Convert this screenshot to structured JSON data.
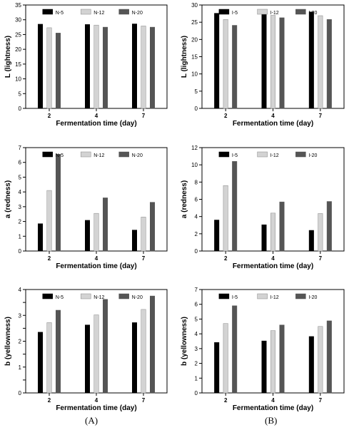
{
  "figure": {
    "panel_labels": [
      "(A)",
      "(B)"
    ]
  },
  "chart_data": [
    {
      "type": "bar",
      "categories": [
        "2",
        "4",
        "7"
      ],
      "xlabel": "Fermentation time (day)",
      "ylabel": "L (lightness)",
      "ylim": [
        0,
        35
      ],
      "yticks": [
        0,
        5,
        10,
        15,
        20,
        25,
        30,
        35
      ],
      "grid": false,
      "legend_position": "top",
      "series": [
        {
          "name": "N-5",
          "color": "#000000",
          "values": [
            28.5,
            28.4,
            28.6
          ]
        },
        {
          "name": "N-12",
          "color": "#d3d3d3",
          "values": [
            27.3,
            28.2,
            27.9
          ]
        },
        {
          "name": "N-20",
          "color": "#555555",
          "values": [
            25.5,
            27.5,
            27.5
          ]
        }
      ]
    },
    {
      "type": "bar",
      "categories": [
        "2",
        "4",
        "7"
      ],
      "xlabel": "Fermentation time (day)",
      "ylabel": "L (lightness)",
      "ylim": [
        0,
        30
      ],
      "yticks": [
        0,
        5,
        10,
        15,
        20,
        25,
        30
      ],
      "grid": false,
      "legend_position": "top",
      "series": [
        {
          "name": "I-5",
          "color": "#000000",
          "values": [
            27.6,
            27.8,
            28.0
          ]
        },
        {
          "name": "I-12",
          "color": "#d3d3d3",
          "values": [
            25.8,
            27.0,
            26.9
          ]
        },
        {
          "name": "I-20",
          "color": "#555555",
          "values": [
            24.1,
            26.3,
            25.8
          ]
        }
      ]
    },
    {
      "type": "bar",
      "categories": [
        "2",
        "4",
        "7"
      ],
      "xlabel": "Fermentation time (day)",
      "ylabel": "a (redness)",
      "ylim": [
        0,
        7
      ],
      "yticks": [
        0,
        1,
        2,
        3,
        4,
        5,
        6,
        7
      ],
      "grid": false,
      "legend_position": "top",
      "series": [
        {
          "name": "N-5",
          "color": "#000000",
          "values": [
            1.85,
            2.08,
            1.42
          ]
        },
        {
          "name": "N-12",
          "color": "#d3d3d3",
          "values": [
            4.1,
            2.55,
            2.3
          ]
        },
        {
          "name": "N-20",
          "color": "#555555",
          "values": [
            6.55,
            3.6,
            3.3
          ]
        }
      ]
    },
    {
      "type": "bar",
      "categories": [
        "2",
        "4",
        "7"
      ],
      "xlabel": "Fermentation time (day)",
      "ylabel": "a (redness)",
      "ylim": [
        0,
        12
      ],
      "yticks": [
        0,
        2,
        4,
        6,
        8,
        10,
        12
      ],
      "grid": false,
      "legend_position": "top",
      "series": [
        {
          "name": "I-5",
          "color": "#000000",
          "values": [
            3.6,
            3.05,
            2.4
          ]
        },
        {
          "name": "I-12",
          "color": "#d3d3d3",
          "values": [
            7.6,
            4.4,
            4.35
          ]
        },
        {
          "name": "I-20",
          "color": "#555555",
          "values": [
            10.4,
            5.7,
            5.75
          ]
        }
      ]
    },
    {
      "type": "bar",
      "categories": [
        "2",
        "4",
        "7"
      ],
      "xlabel": "Fermentation time (day)",
      "ylabel": "b (yellowness)",
      "ylim": [
        0,
        4
      ],
      "yticks": [
        0,
        0.5,
        1.0,
        1.5,
        2.0,
        2.5,
        3.0,
        3.5,
        4.0
      ],
      "yticklabels": [
        "0",
        "",
        "1",
        "",
        "2",
        "",
        "3",
        "",
        "4"
      ],
      "grid": false,
      "legend_position": "top",
      "series": [
        {
          "name": "N-5",
          "color": "#000000",
          "values": [
            2.35,
            2.63,
            2.72
          ]
        },
        {
          "name": "N-12",
          "color": "#d3d3d3",
          "values": [
            2.72,
            3.02,
            3.23
          ]
        },
        {
          "name": "N-20",
          "color": "#555555",
          "values": [
            3.2,
            3.62,
            3.75
          ]
        }
      ]
    },
    {
      "type": "bar",
      "categories": [
        "2",
        "4",
        "7"
      ],
      "xlabel": "Fermentation time (day)",
      "ylabel": "b (yellowness)",
      "ylim": [
        0,
        7
      ],
      "yticks": [
        0,
        1,
        2,
        3,
        4,
        5,
        6,
        7
      ],
      "grid": false,
      "legend_position": "top",
      "series": [
        {
          "name": "I-5",
          "color": "#000000",
          "values": [
            3.42,
            3.52,
            3.82
          ]
        },
        {
          "name": "I-12",
          "color": "#d3d3d3",
          "values": [
            4.7,
            4.22,
            4.5
          ]
        },
        {
          "name": "I-20",
          "color": "#555555",
          "values": [
            5.9,
            4.6,
            4.88
          ]
        }
      ]
    }
  ]
}
